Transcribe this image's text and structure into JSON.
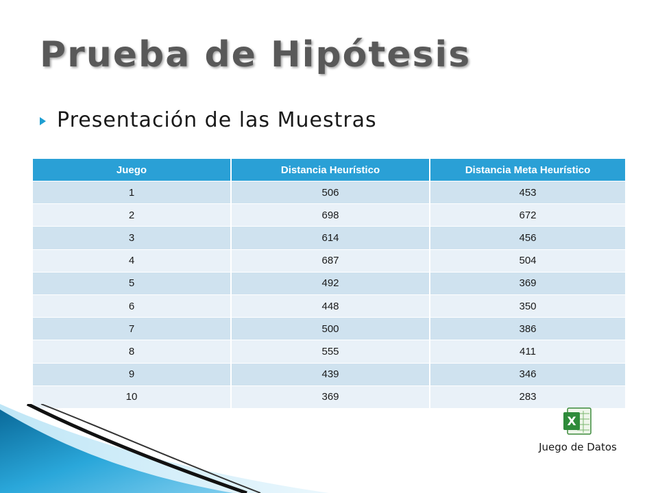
{
  "slide": {
    "title": "Prueba de Hipótesis",
    "bullet": "Presentación de las Muestras"
  },
  "table": {
    "headers": [
      "Juego",
      "Distancia  Heurístico",
      "Distancia  Meta Heurístico"
    ],
    "rows": [
      [
        "1",
        "506",
        "453"
      ],
      [
        "2",
        "698",
        "672"
      ],
      [
        "3",
        "614",
        "456"
      ],
      [
        "4",
        "687",
        "504"
      ],
      [
        "5",
        "492",
        "369"
      ],
      [
        "6",
        "448",
        "350"
      ],
      [
        "7",
        "500",
        "386"
      ],
      [
        "8",
        "555",
        "411"
      ],
      [
        "9",
        "439",
        "346"
      ],
      [
        "10",
        "369",
        "283"
      ]
    ]
  },
  "attachment": {
    "icon": "excel-icon",
    "label": "Juego de Datos"
  },
  "colors": {
    "header_bg": "#2aa0d6",
    "row_odd": "#cfe2ef",
    "row_even": "#e9f1f8",
    "title": "#595959",
    "bullet_accent": "#1f9fd2"
  }
}
